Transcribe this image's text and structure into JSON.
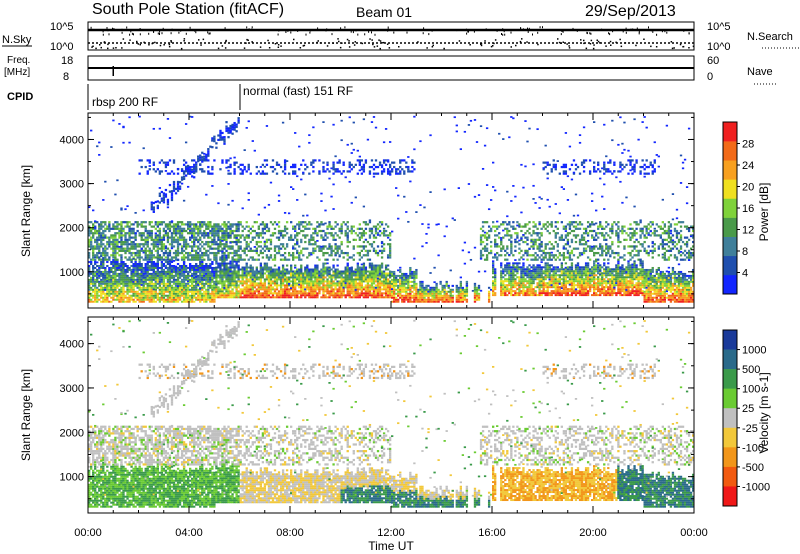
{
  "header": {
    "title": "South Pole Station (fitACF)",
    "beam": "Beam 01",
    "date": "29/Sep/2013"
  },
  "panels": {
    "nsky": {
      "label": "N.Sky",
      "ticks": [
        "10^5",
        "10^0"
      ]
    },
    "nsearch": {
      "label": "N.Search",
      "ticks": [
        "10^5",
        "10^0"
      ]
    },
    "freq": {
      "label_line1": "Freq.",
      "label_line2": "[MHz]",
      "ticks": [
        "18",
        "8"
      ]
    },
    "nave": {
      "label": "Nave",
      "ticks": [
        "60",
        "0"
      ]
    },
    "cpid": {
      "label": "CPID",
      "modes": [
        {
          "text": "rbsp 200 RF",
          "start_hour": 0
        },
        {
          "text": "normal (fast) 151 RF",
          "start_hour": 6
        }
      ]
    }
  },
  "chart_data": [
    {
      "type": "heatmap",
      "name": "Power",
      "ylabel": "Slant Range [km]",
      "ylim": [
        180,
        4600
      ],
      "yticks": [
        "1000",
        "2000",
        "3000",
        "4000"
      ],
      "xlim_hours": [
        0,
        24
      ],
      "colorbar": {
        "label": "Power [dB]",
        "ticks": [
          "4",
          "8",
          "12",
          "16",
          "20",
          "24",
          "28"
        ],
        "colors": [
          "#1226ff",
          "#1f4fae",
          "#3f7f9a",
          "#4a9a4a",
          "#7fd23a",
          "#f0e020",
          "#f7a020",
          "#f26a18",
          "#f02020"
        ]
      }
    },
    {
      "type": "heatmap",
      "name": "Velocity",
      "ylabel": "Slant Range [km]",
      "ylim": [
        180,
        4600
      ],
      "yticks": [
        "1000",
        "2000",
        "3000",
        "4000"
      ],
      "xlim_hours": [
        0,
        24
      ],
      "colorbar": {
        "label": "Velocity [m s-1]",
        "ticks": [
          "1000",
          "500",
          "100",
          "25",
          "-25",
          "-100",
          "-500",
          "-1000"
        ],
        "colors": [
          "#1a3a9a",
          "#2a6a8a",
          "#3a9a4a",
          "#6acb32",
          "#c0c0c0",
          "#f2c83a",
          "#f2961a",
          "#f25a10",
          "#f01818"
        ]
      }
    }
  ],
  "xaxis": {
    "ticks": [
      "00:00",
      "04:00",
      "08:00",
      "12:00",
      "16:00",
      "20:00",
      "00:00"
    ],
    "label": "Time UT"
  }
}
